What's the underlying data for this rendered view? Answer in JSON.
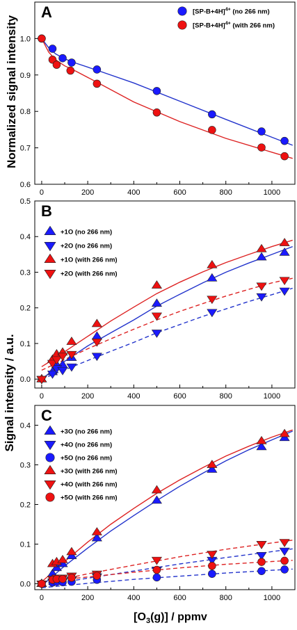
{
  "colors": {
    "blue": "#1a1aff",
    "red": "#ee1111",
    "blue_line": "#2233cc",
    "red_line": "#dd2222"
  },
  "labels": {
    "ylabel_top": "Normalized signal intensity",
    "ylabel_bottom": "Signal intensity / a.u.",
    "xlabel_prefix": "[O",
    "xlabel_sub": "3",
    "xlabel_suffix": "(g)] / ppmv"
  },
  "chart_data": [
    {
      "type": "scatter",
      "panel": "A",
      "ylabel": "Normalized signal intensity",
      "xlim": [
        -30,
        1100
      ],
      "ylim": [
        0.6,
        1.1
      ],
      "xticks": [
        "0",
        "200",
        "400",
        "600",
        "800",
        "1000"
      ],
      "yticks": [
        "0.6",
        "0.7",
        "0.8",
        "0.9",
        "1.0"
      ],
      "legend_position": "top-right",
      "series": [
        {
          "name": "[SP-B+4H]4+ (no 266 nm)",
          "name_main": "[SP-B+4H]",
          "name_sup": "4+",
          "name_rest": " (no 266 nm)",
          "color": "blue",
          "marker": "circle",
          "line": "solid",
          "x": [
            0,
            47,
            91,
            130,
            240,
            500,
            740,
            955,
            1055
          ],
          "y": [
            1.0,
            0.972,
            0.946,
            0.934,
            0.915,
            0.856,
            0.792,
            0.745,
            0.719
          ],
          "fit": [
            [
              0,
              1.0
            ],
            [
              30,
              0.975
            ],
            [
              60,
              0.958
            ],
            [
              100,
              0.944
            ],
            [
              150,
              0.932
            ],
            [
              240,
              0.913
            ],
            [
              400,
              0.878
            ],
            [
              600,
              0.828
            ],
            [
              800,
              0.778
            ],
            [
              1000,
              0.729
            ],
            [
              1090,
              0.707
            ]
          ]
        },
        {
          "name": "[SP-B+4H]4+ (with 266 nm)",
          "name_main": "[SP-B+4H]",
          "name_sup": "4+",
          "name_rest": " (with 266 nm)",
          "color": "red",
          "marker": "circle",
          "line": "solid",
          "x": [
            0,
            47,
            65,
            125,
            240,
            500,
            740,
            955,
            1055
          ],
          "y": [
            1.0,
            0.942,
            0.928,
            0.912,
            0.876,
            0.797,
            0.749,
            0.701,
            0.677
          ],
          "fit": [
            [
              0,
              1.0
            ],
            [
              30,
              0.963
            ],
            [
              60,
              0.942
            ],
            [
              100,
              0.925
            ],
            [
              150,
              0.91
            ],
            [
              240,
              0.88
            ],
            [
              400,
              0.826
            ],
            [
              600,
              0.772
            ],
            [
              800,
              0.726
            ],
            [
              1000,
              0.688
            ],
            [
              1090,
              0.671
            ]
          ]
        }
      ]
    },
    {
      "type": "scatter",
      "panel": "B",
      "xlim": [
        -30,
        1100
      ],
      "ylim": [
        -0.025,
        0.5
      ],
      "xticks": [
        "0",
        "200",
        "400",
        "600",
        "800",
        "1000"
      ],
      "yticks": [
        "0.0",
        "0.1",
        "0.2",
        "0.3",
        "0.4",
        "0.5"
      ],
      "legend_position": "top-left",
      "series": [
        {
          "name": "+1O (no 266 nm)",
          "color": "blue",
          "marker": "triangle-up",
          "line": "solid",
          "x": [
            0,
            47,
            65,
            91,
            130,
            240,
            500,
            740,
            955,
            1055
          ],
          "y": [
            0.0,
            0.02,
            0.04,
            0.04,
            0.06,
            0.12,
            0.212,
            0.283,
            0.342,
            0.355
          ],
          "fit": [
            [
              0,
              0.0
            ],
            [
              100,
              0.05
            ],
            [
              200,
              0.093
            ],
            [
              300,
              0.13
            ],
            [
              400,
              0.166
            ],
            [
              500,
              0.205
            ],
            [
              600,
              0.238
            ],
            [
              700,
              0.27
            ],
            [
              800,
              0.3
            ],
            [
              900,
              0.326
            ],
            [
              1000,
              0.35
            ],
            [
              1090,
              0.372
            ]
          ]
        },
        {
          "name": "+2O (no 266 nm)",
          "color": "blue",
          "marker": "triangle-down",
          "line": "dashed",
          "x": [
            0,
            47,
            65,
            91,
            130,
            240,
            500,
            740,
            955,
            1055
          ],
          "y": [
            0.0,
            0.015,
            0.03,
            0.025,
            0.035,
            0.065,
            0.13,
            0.188,
            0.232,
            0.248
          ],
          "fit": [
            [
              0,
              0.0
            ],
            [
              100,
              0.026
            ],
            [
              200,
              0.052
            ],
            [
              300,
              0.078
            ],
            [
              400,
              0.103
            ],
            [
              500,
              0.13
            ],
            [
              600,
              0.153
            ],
            [
              700,
              0.176
            ],
            [
              800,
              0.197
            ],
            [
              900,
              0.218
            ],
            [
              1000,
              0.237
            ],
            [
              1090,
              0.255
            ]
          ]
        },
        {
          "name": "+1O (with 266 nm)",
          "color": "red",
          "marker": "triangle-up",
          "line": "solid",
          "x": [
            0,
            47,
            65,
            91,
            130,
            240,
            500,
            740,
            955,
            1055
          ],
          "y": [
            0.0,
            0.055,
            0.07,
            0.075,
            0.105,
            0.155,
            0.263,
            0.32,
            0.365,
            0.382
          ],
          "fit": [
            [
              0,
              0.035
            ],
            [
              50,
              0.055
            ],
            [
              100,
              0.077
            ],
            [
              200,
              0.12
            ],
            [
              300,
              0.163
            ],
            [
              400,
              0.202
            ],
            [
              500,
              0.24
            ],
            [
              600,
              0.272
            ],
            [
              700,
              0.301
            ],
            [
              800,
              0.327
            ],
            [
              900,
              0.35
            ],
            [
              1000,
              0.372
            ],
            [
              1090,
              0.39
            ]
          ]
        },
        {
          "name": "+2O (with 266 nm)",
          "color": "red",
          "marker": "triangle-down",
          "line": "dashed",
          "x": [
            0,
            47,
            65,
            91,
            130,
            240,
            500,
            740,
            955,
            1055
          ],
          "y": [
            0.0,
            0.045,
            0.055,
            0.065,
            0.07,
            0.105,
            0.178,
            0.225,
            0.262,
            0.278
          ],
          "fit": [
            [
              0,
              0.025
            ],
            [
              50,
              0.04
            ],
            [
              100,
              0.055
            ],
            [
              200,
              0.085
            ],
            [
              300,
              0.113
            ],
            [
              400,
              0.14
            ],
            [
              500,
              0.166
            ],
            [
              600,
              0.19
            ],
            [
              700,
              0.212
            ],
            [
              800,
              0.233
            ],
            [
              900,
              0.252
            ],
            [
              1000,
              0.27
            ],
            [
              1090,
              0.283
            ]
          ]
        }
      ]
    },
    {
      "type": "scatter",
      "panel": "C",
      "xlim": [
        -30,
        1100
      ],
      "ylim": [
        -0.015,
        0.45
      ],
      "xticks": [
        "0",
        "200",
        "400",
        "600",
        "800",
        "1000"
      ],
      "yticks": [
        "0.0",
        "0.1",
        "0.2",
        "0.3",
        "0.4"
      ],
      "xlabel": "[O3(g)] / ppmv",
      "legend_position": "top-left",
      "series": [
        {
          "name": "+3O (no 266 nm)",
          "color": "blue",
          "marker": "triangle-up",
          "line": "solid",
          "x": [
            0,
            47,
            65,
            91,
            130,
            240,
            500,
            740,
            955,
            1055
          ],
          "y": [
            0.0,
            0.025,
            0.04,
            0.05,
            0.07,
            0.115,
            0.21,
            0.288,
            0.345,
            0.368
          ],
          "fit": [
            [
              0,
              -0.005
            ],
            [
              50,
              0.02
            ],
            [
              100,
              0.045
            ],
            [
              200,
              0.09
            ],
            [
              300,
              0.133
            ],
            [
              400,
              0.172
            ],
            [
              500,
              0.21
            ],
            [
              600,
              0.246
            ],
            [
              700,
              0.279
            ],
            [
              800,
              0.31
            ],
            [
              900,
              0.338
            ],
            [
              1000,
              0.363
            ],
            [
              1090,
              0.385
            ]
          ]
        },
        {
          "name": "+4O (no 266 nm)",
          "color": "blue",
          "marker": "triangle-down",
          "line": "dashed",
          "x": [
            0,
            47,
            65,
            91,
            130,
            240,
            500,
            740,
            955,
            1055
          ],
          "y": [
            0.0,
            0.005,
            0.008,
            0.006,
            0.01,
            0.018,
            0.035,
            0.06,
            0.072,
            0.083
          ],
          "fit": [
            [
              0,
              -0.005
            ],
            [
              200,
              0.014
            ],
            [
              400,
              0.032
            ],
            [
              600,
              0.05
            ],
            [
              800,
              0.066
            ],
            [
              1000,
              0.081
            ],
            [
              1090,
              0.088
            ]
          ]
        },
        {
          "name": "+5O (no 266 nm)",
          "color": "blue",
          "marker": "circle",
          "line": "dashed",
          "x": [
            0,
            47,
            65,
            91,
            130,
            240,
            500,
            740,
            955,
            1055
          ],
          "y": [
            0.0,
            0.003,
            0.005,
            0.004,
            0.005,
            0.01,
            0.016,
            0.025,
            0.032,
            0.036
          ],
          "fit": [
            [
              0,
              -0.01
            ],
            [
              200,
              0.001
            ],
            [
              400,
              0.011
            ],
            [
              600,
              0.019
            ],
            [
              800,
              0.027
            ],
            [
              1000,
              0.034
            ],
            [
              1090,
              0.037
            ]
          ]
        },
        {
          "name": "+3O (with 266 nm)",
          "color": "red",
          "marker": "triangle-up",
          "line": "solid",
          "x": [
            0,
            47,
            65,
            91,
            130,
            240,
            500,
            740,
            955,
            1055
          ],
          "y": [
            0.0,
            0.05,
            0.055,
            0.06,
            0.08,
            0.13,
            0.236,
            0.3,
            0.36,
            0.378
          ],
          "fit": [
            [
              0,
              0.005
            ],
            [
              50,
              0.03
            ],
            [
              100,
              0.056
            ],
            [
              200,
              0.105
            ],
            [
              300,
              0.15
            ],
            [
              400,
              0.19
            ],
            [
              500,
              0.228
            ],
            [
              600,
              0.262
            ],
            [
              700,
              0.293
            ],
            [
              800,
              0.322
            ],
            [
              900,
              0.347
            ],
            [
              1000,
              0.37
            ],
            [
              1090,
              0.388
            ]
          ]
        },
        {
          "name": "+4O (with 266 nm)",
          "color": "red",
          "marker": "triangle-down",
          "line": "dashed",
          "x": [
            0,
            47,
            65,
            91,
            130,
            240,
            500,
            740,
            955,
            1055
          ],
          "y": [
            0.0,
            0.012,
            0.015,
            0.015,
            0.02,
            0.025,
            0.06,
            0.075,
            0.1,
            0.105
          ],
          "fit": [
            [
              0,
              0.0
            ],
            [
              200,
              0.025
            ],
            [
              400,
              0.047
            ],
            [
              600,
              0.068
            ],
            [
              800,
              0.087
            ],
            [
              1000,
              0.103
            ],
            [
              1090,
              0.11
            ]
          ]
        },
        {
          "name": "+5O (with 266 nm)",
          "color": "red",
          "marker": "circle",
          "line": "dashed",
          "x": [
            0,
            47,
            65,
            91,
            130,
            240,
            500,
            740,
            955,
            1055
          ],
          "y": [
            0.0,
            0.01,
            0.012,
            0.012,
            0.015,
            0.02,
            0.035,
            0.045,
            0.055,
            0.058
          ],
          "fit": [
            [
              0,
              0.005
            ],
            [
              200,
              0.017
            ],
            [
              400,
              0.029
            ],
            [
              600,
              0.04
            ],
            [
              800,
              0.049
            ],
            [
              1000,
              0.056
            ],
            [
              1090,
              0.059
            ]
          ]
        }
      ]
    }
  ]
}
